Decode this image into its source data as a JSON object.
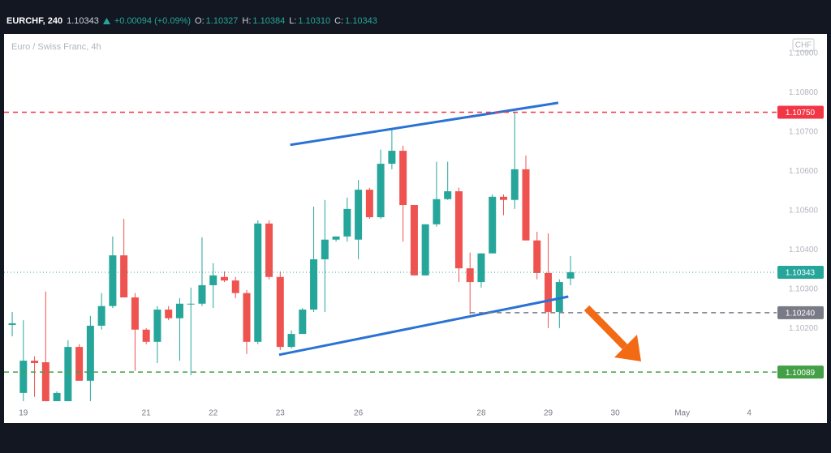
{
  "chart_data": {
    "type": "candlestick",
    "symbol": "EURCHF, 240",
    "last": 1.10343,
    "change": "+0.00094 (+0.09%)",
    "ohlc_legend": [
      {
        "label": "O:",
        "value": 1.10327
      },
      {
        "label": "H:",
        "value": 1.10384
      },
      {
        "label": "L:",
        "value": 1.1031,
        "value_label": "1.10310"
      },
      {
        "label": "C:",
        "value": 1.10343
      }
    ],
    "subtitle": "Euro / Swiss Franc, 4h",
    "currency": "CHF",
    "up_color": "#26a69a",
    "down_color": "#ef5350",
    "open": [
      1.10209,
      1.10036,
      1.10118,
      1.10114,
      1.10015,
      1.10015,
      1.10153,
      1.10067,
      1.10207,
      1.10257,
      1.10386,
      1.10279,
      1.10197,
      1.10166,
      1.10248,
      1.10226,
      1.10261,
      1.10263,
      1.1031,
      1.10331,
      1.10322,
      1.1029,
      1.10166,
      1.10467,
      1.10331,
      1.10153,
      1.10186,
      1.10248,
      1.10376,
      1.10426,
      1.10434,
      1.10426,
      1.10553,
      1.10483,
      1.10619,
      1.10652,
      1.10514,
      1.10335,
      1.10465,
      1.10529,
      1.10549,
      1.10353,
      1.10318,
      1.10391,
      1.10535,
      1.10527,
      1.10605,
      1.10424,
      1.10341,
      1.10242,
      1.10327
    ],
    "high": [
      1.10242,
      1.10221,
      1.10129,
      1.10294,
      1.1004,
      1.1017,
      1.1016,
      1.10232,
      1.1029,
      1.10434,
      1.10479,
      1.1029,
      1.10201,
      1.10257,
      1.10257,
      1.10277,
      1.10304,
      1.10432,
      1.10366,
      1.10345,
      1.10331,
      1.10298,
      1.10475,
      1.10475,
      1.10345,
      1.10195,
      1.10252,
      1.1051,
      1.10527,
      1.10434,
      1.10533,
      1.10578,
      1.10558,
      1.10655,
      1.10706,
      1.10665,
      1.10514,
      1.10465,
      1.10624,
      1.10624,
      1.10558,
      1.10393,
      1.10391,
      1.10541,
      1.10541,
      1.10751,
      1.1064,
      1.10446,
      1.10442,
      1.10325,
      1.10384
    ],
    "low": [
      1.1018,
      1.10015,
      1.10026,
      1.10015,
      1.10015,
      1.10015,
      1.10067,
      1.10015,
      1.10197,
      1.10252,
      1.10279,
      1.10092,
      1.1016,
      1.10112,
      1.10221,
      1.10118,
      1.10081,
      1.10257,
      1.10252,
      1.10318,
      1.10277,
      1.10135,
      1.1016,
      1.10325,
      1.10145,
      1.10149,
      1.10186,
      1.10242,
      1.10242,
      1.10421,
      1.10421,
      1.10376,
      1.10479,
      1.10479,
      1.10605,
      1.10421,
      1.10335,
      1.10335,
      1.10459,
      1.10527,
      1.10318,
      1.10236,
      1.10304,
      1.10391,
      1.10488,
      1.10504,
      1.10424,
      1.10325,
      1.10201,
      1.10201,
      1.1031
    ],
    "close": [
      1.10213,
      1.10118,
      1.10112,
      1.10015,
      1.10036,
      1.10153,
      1.10067,
      1.10207,
      1.10257,
      1.10386,
      1.10279,
      1.10197,
      1.10166,
      1.10248,
      1.10226,
      1.10263,
      1.10263,
      1.1031,
      1.10335,
      1.10322,
      1.1029,
      1.10166,
      1.10467,
      1.10331,
      1.10153,
      1.10186,
      1.10248,
      1.10376,
      1.10426,
      1.10434,
      1.10504,
      1.10553,
      1.10483,
      1.10619,
      1.10652,
      1.10514,
      1.10335,
      1.10465,
      1.10529,
      1.10549,
      1.10353,
      1.10318,
      1.10391,
      1.10535,
      1.10527,
      1.10605,
      1.10424,
      1.10341,
      1.10242,
      1.10318,
      1.10343
    ],
    "xlim": [
      -0.73,
      68.31
    ],
    "xticks": [
      {
        "value": 1,
        "label": "19"
      },
      {
        "value": 12,
        "label": "21"
      },
      {
        "value": 18,
        "label": "22"
      },
      {
        "value": 24,
        "label": "23"
      },
      {
        "value": 31,
        "label": "26"
      },
      {
        "value": 42,
        "label": "28"
      },
      {
        "value": 48,
        "label": "29"
      },
      {
        "value": 54,
        "label": "30"
      },
      {
        "value": 60,
        "label": "May"
      },
      {
        "value": 66,
        "label": "4"
      }
    ],
    "ylim": [
      1.10011,
      1.10949
    ],
    "yticks": [
      {
        "value": 1.102,
        "label": "1.10200"
      },
      {
        "value": 1.103,
        "label": "1.10300"
      },
      {
        "value": 1.104,
        "label": "1.10400"
      },
      {
        "value": 1.105,
        "label": "1.10500"
      },
      {
        "value": 1.106,
        "label": "1.10600"
      },
      {
        "value": 1.107,
        "label": "1.10700"
      },
      {
        "value": 1.108,
        "label": "1.10800"
      },
      {
        "value": 1.109,
        "label": "1.10900"
      }
    ],
    "levels": [
      {
        "value": 1.1075,
        "label": "1.10750",
        "color": "#f23645",
        "style": "dashed"
      },
      {
        "value": 1.10343,
        "label": "1.10343",
        "color": "#26a69a",
        "style": "dotted"
      },
      {
        "value": 1.1024,
        "label": "1.10240",
        "color": "#787b86",
        "style": "dashed",
        "start": 41
      },
      {
        "value": 1.10089,
        "label": "1.10089",
        "color": "#43a047",
        "style": "dashed"
      }
    ],
    "trendlines": [
      {
        "color": "#2a72d5",
        "x": [
          24.9,
          48.9
        ],
        "y": [
          1.10667,
          1.10774
        ]
      },
      {
        "color": "#2a72d5",
        "x": [
          23.9,
          49.8
        ],
        "y": [
          1.10133,
          1.10281
        ]
      }
    ]
  }
}
